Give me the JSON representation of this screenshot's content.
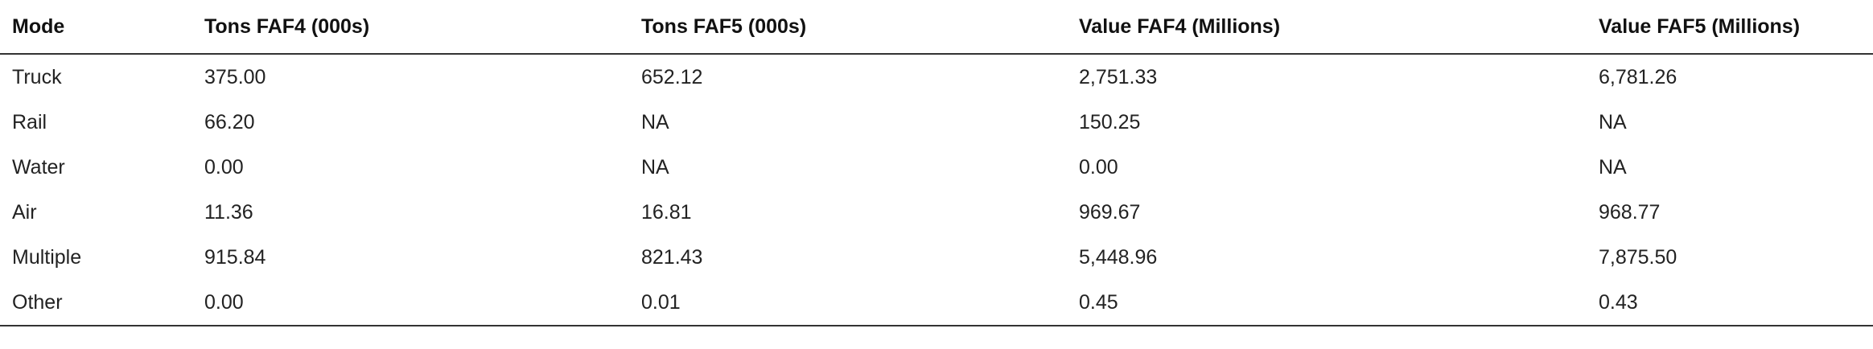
{
  "table": {
    "columns": [
      "Mode",
      "Tons FAF4 (000s)",
      "Tons FAF5 (000s)",
      "Value FAF4 (Millions)",
      "Value FAF5 (Millions)"
    ],
    "rows": [
      [
        "Truck",
        "375.00",
        "652.12",
        "2,751.33",
        "6,781.26"
      ],
      [
        "Rail",
        "66.20",
        "NA",
        "150.25",
        "NA"
      ],
      [
        "Water",
        "0.00",
        "NA",
        "0.00",
        "NA"
      ],
      [
        "Air",
        "11.36",
        "16.81",
        "969.67",
        "968.77"
      ],
      [
        "Multiple",
        "915.84",
        "821.43",
        "5,448.96",
        "7,875.50"
      ],
      [
        "Other",
        "0.00",
        "0.01",
        "0.45",
        "0.43"
      ]
    ]
  }
}
